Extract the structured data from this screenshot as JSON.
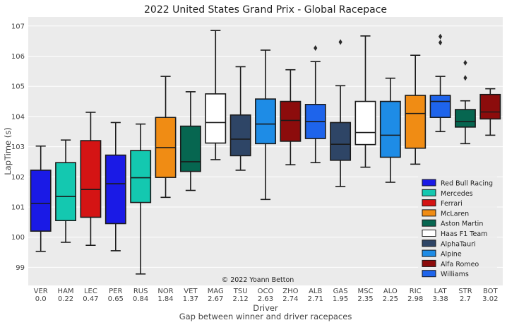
{
  "chart_data": {
    "type": "box",
    "title": "2022 United States Grand Prix - Global Racepace",
    "xlabel": "Driver",
    "xlabel2": "Gap between winner and driver racepaces",
    "ylabel": "LapTime (s)",
    "ylim": [
      98.4,
      107.3
    ],
    "yticks": [
      "99",
      "100",
      "101",
      "102",
      "103",
      "104",
      "105",
      "106",
      "107"
    ],
    "grid": true,
    "legend_position": "lower-right",
    "credit": "© 2022 Yoann Betton",
    "teams": [
      {
        "name": "Red Bull Racing",
        "color": "#1a1ae6"
      },
      {
        "name": "Mercedes",
        "color": "#14c8b0"
      },
      {
        "name": "Ferrari",
        "color": "#d41414"
      },
      {
        "name": "McLaren",
        "color": "#f08c14"
      },
      {
        "name": "Aston Martin",
        "color": "#066650"
      },
      {
        "name": "Haas F1 Team",
        "color": "#ffffff"
      },
      {
        "name": "AlphaTauri",
        "color": "#2e4566"
      },
      {
        "name": "Alpine",
        "color": "#1e8ce6"
      },
      {
        "name": "Alfa Romeo",
        "color": "#8c0c0c"
      },
      {
        "name": "Williams",
        "color": "#1e64eb"
      }
    ],
    "drivers": [
      {
        "driver": "VER",
        "gap": "0.0",
        "team": 0,
        "whislo": 99.53,
        "q1": 100.2,
        "med": 101.12,
        "q3": 102.22,
        "whishi": 103.02,
        "fliers": []
      },
      {
        "driver": "HAM",
        "gap": "0.22",
        "team": 1,
        "whislo": 99.83,
        "q1": 100.55,
        "med": 101.35,
        "q3": 102.47,
        "whishi": 103.22,
        "fliers": []
      },
      {
        "driver": "LEC",
        "gap": "0.47",
        "team": 2,
        "whislo": 99.73,
        "q1": 100.66,
        "med": 101.58,
        "q3": 103.2,
        "whishi": 104.14,
        "fliers": []
      },
      {
        "driver": "PER",
        "gap": "0.65",
        "team": 0,
        "whislo": 99.55,
        "q1": 100.45,
        "med": 101.77,
        "q3": 102.72,
        "whishi": 103.8,
        "fliers": []
      },
      {
        "driver": "RUS",
        "gap": "0.84",
        "team": 1,
        "whislo": 98.78,
        "q1": 101.15,
        "med": 101.97,
        "q3": 102.87,
        "whishi": 103.75,
        "fliers": []
      },
      {
        "driver": "NOR",
        "gap": "1.84",
        "team": 3,
        "whislo": 101.32,
        "q1": 101.98,
        "med": 102.97,
        "q3": 103.97,
        "whishi": 105.33,
        "fliers": []
      },
      {
        "driver": "VET",
        "gap": "1.37",
        "team": 4,
        "whislo": 101.55,
        "q1": 102.18,
        "med": 102.5,
        "q3": 103.68,
        "whishi": 104.82,
        "fliers": []
      },
      {
        "driver": "MAG",
        "gap": "2.67",
        "team": 5,
        "whislo": 102.57,
        "q1": 103.12,
        "med": 103.8,
        "q3": 104.75,
        "whishi": 106.85,
        "fliers": []
      },
      {
        "driver": "TSU",
        "gap": "2.12",
        "team": 6,
        "whislo": 102.22,
        "q1": 102.7,
        "med": 103.25,
        "q3": 104.05,
        "whishi": 105.65,
        "fliers": []
      },
      {
        "driver": "OCO",
        "gap": "2.63",
        "team": 7,
        "whislo": 101.25,
        "q1": 103.1,
        "med": 103.75,
        "q3": 104.58,
        "whishi": 106.2,
        "fliers": []
      },
      {
        "driver": "ZHO",
        "gap": "2.74",
        "team": 8,
        "whislo": 102.4,
        "q1": 103.18,
        "med": 103.87,
        "q3": 104.5,
        "whishi": 105.55,
        "fliers": []
      },
      {
        "driver": "ALB",
        "gap": "2.71",
        "team": 9,
        "whislo": 102.47,
        "q1": 103.27,
        "med": 103.83,
        "q3": 104.4,
        "whishi": 105.82,
        "fliers": [
          106.27
        ]
      },
      {
        "driver": "GAS",
        "gap": "1.95",
        "team": 6,
        "whislo": 101.68,
        "q1": 102.55,
        "med": 103.08,
        "q3": 103.8,
        "whishi": 105.02,
        "fliers": [
          106.47
        ]
      },
      {
        "driver": "MSC",
        "gap": "2.35",
        "team": 5,
        "whislo": 102.32,
        "q1": 103.07,
        "med": 103.47,
        "q3": 104.5,
        "whishi": 106.67,
        "fliers": []
      },
      {
        "driver": "ALO",
        "gap": "2.25",
        "team": 7,
        "whislo": 101.82,
        "q1": 102.65,
        "med": 103.38,
        "q3": 104.5,
        "whishi": 105.27,
        "fliers": []
      },
      {
        "driver": "RIC",
        "gap": "2.98",
        "team": 3,
        "whislo": 102.42,
        "q1": 102.95,
        "med": 104.1,
        "q3": 104.7,
        "whishi": 106.03,
        "fliers": []
      },
      {
        "driver": "LAT",
        "gap": "3.38",
        "team": 9,
        "whislo": 103.5,
        "q1": 103.97,
        "med": 104.5,
        "q3": 104.7,
        "whishi": 105.33,
        "fliers": [
          106.45,
          106.65
        ]
      },
      {
        "driver": "STR",
        "gap": "2.7",
        "team": 4,
        "whislo": 103.1,
        "q1": 103.65,
        "med": 103.83,
        "q3": 104.23,
        "whishi": 104.52,
        "fliers": [
          105.28,
          105.78
        ]
      },
      {
        "driver": "BOT",
        "gap": "3.02",
        "team": 8,
        "whislo": 103.38,
        "q1": 103.92,
        "med": 104.15,
        "q3": 104.73,
        "whishi": 104.92,
        "fliers": []
      }
    ]
  }
}
